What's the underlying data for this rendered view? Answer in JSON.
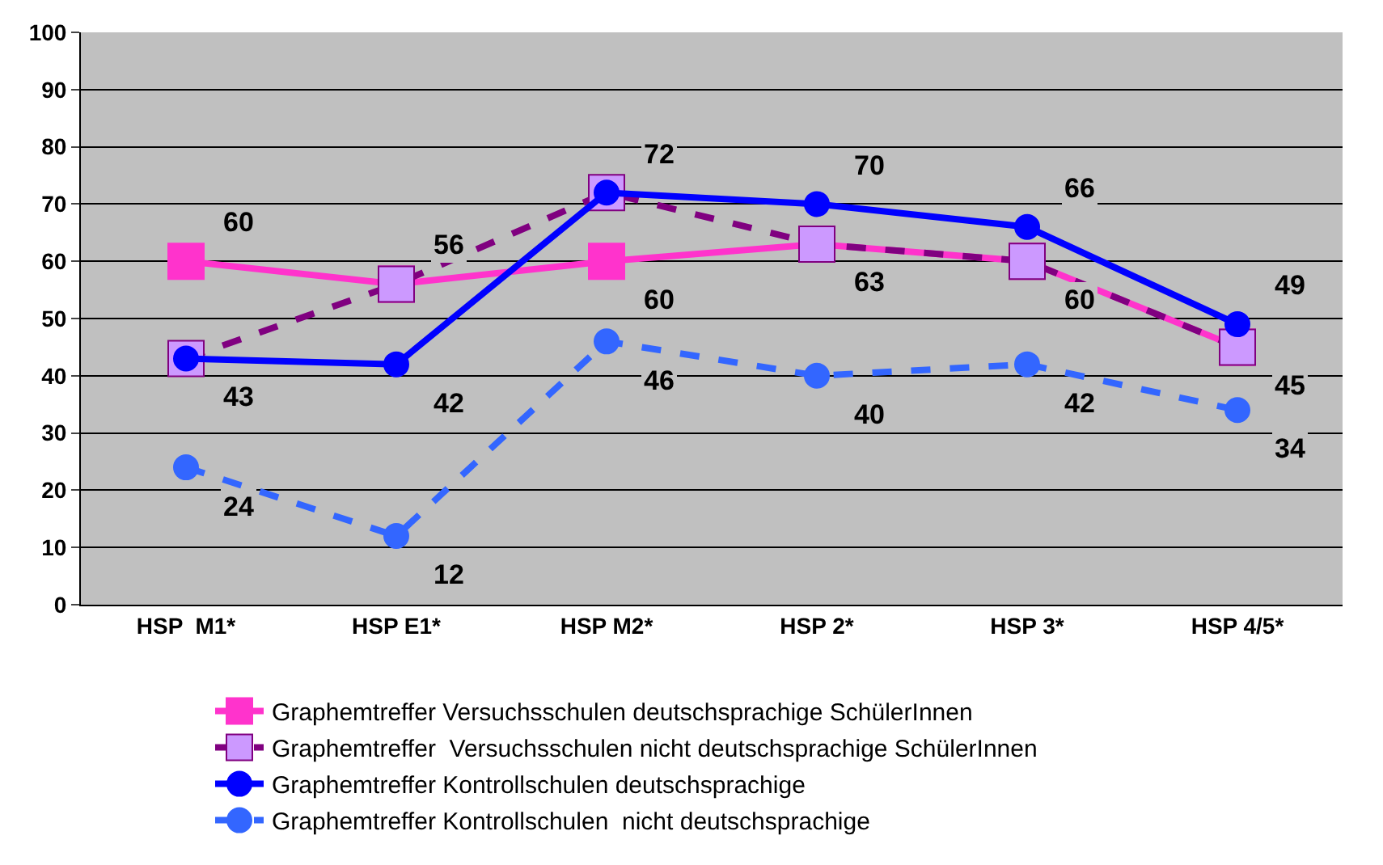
{
  "chart_data": {
    "type": "line",
    "categories": [
      "HSP  M1*",
      "HSP E1*",
      "HSP M2*",
      "HSP 2*",
      "HSP 3*",
      "HSP 4/5*"
    ],
    "ylim": [
      0,
      100
    ],
    "yticks": [
      0,
      10,
      20,
      30,
      40,
      50,
      60,
      70,
      80,
      90,
      100
    ],
    "grid": "y",
    "legend": "bottom",
    "series": [
      {
        "name": "Graphemtreffer Versuchsschulen deutschsprachige SchülerInnen",
        "color": "#ff33cc",
        "marker": "square",
        "line_style": "solid",
        "values": [
          60,
          56,
          60,
          63,
          60,
          45
        ],
        "value_labels": [
          "60",
          "56",
          "60",
          "63",
          "60",
          "45"
        ]
      },
      {
        "name": "Graphemtreffer  Versuchsschulen nicht deutschsprachige SchülerInnen",
        "color": "#800080",
        "colors": [
          "#cc99ff",
          "#cc99ff",
          "#cc99ff",
          "#cc99ff",
          "#cc99ff",
          "#cc99ff"
        ],
        "marker": "square",
        "line_style": "dashed",
        "values": [
          43,
          56,
          72,
          63,
          60,
          45
        ]
      },
      {
        "name": "Graphemtreffer Kontrollschulen deutschsprachige",
        "color": "#0000ff",
        "marker": "circle",
        "line_style": "solid",
        "values": [
          43,
          42,
          72,
          70,
          66,
          49
        ],
        "value_labels": [
          "43",
          "42",
          "72",
          "70",
          "66",
          "49"
        ]
      },
      {
        "name": "Graphemtreffer Kontrollschulen  nicht deutschsprachige",
        "color": "#3366ff",
        "marker": "circle",
        "line_style": "dashed",
        "values": [
          24,
          12,
          46,
          40,
          42,
          34
        ],
        "value_labels": [
          "24",
          "12",
          "46",
          "40",
          "42",
          "34"
        ]
      }
    ]
  }
}
